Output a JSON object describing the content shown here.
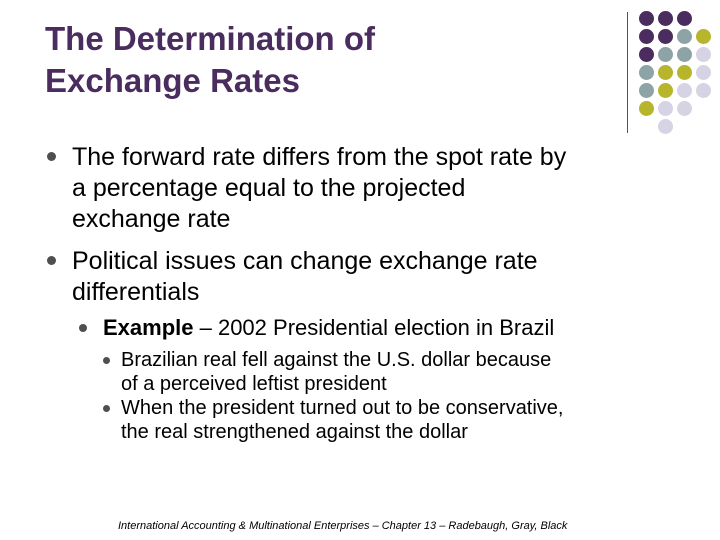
{
  "slide": {
    "title_line1": "The Determination of",
    "title_line2": "Exchange Rates",
    "bullets": [
      {
        "lines": [
          "The forward rate differs from the spot rate by",
          "a percentage equal to the projected",
          "exchange rate"
        ]
      },
      {
        "lines": [
          "Political issues can change exchange rate",
          "differentials"
        ]
      }
    ],
    "sub_bullet": {
      "bold_label": "Example",
      "text": " – 2002 Presidential election in Brazil"
    },
    "sub_sub_bullets": [
      {
        "lines": [
          "Brazilian real fell against the U.S. dollar because",
          "of a perceived leftist president"
        ]
      },
      {
        "lines": [
          "When the president turned out to be conservative,",
          "the real strengthened against the dollar"
        ]
      }
    ],
    "footer": "International Accounting & Multinational Enterprises – Chapter 13 – Radebaugh, Gray, Black"
  },
  "colors": {
    "title": "#4a2c5e",
    "dot_purple": "#4a2c5e",
    "dot_teal": "#8ea3a6",
    "dot_olive": "#b7b52c",
    "dot_lavender": "#d6d4e4"
  }
}
